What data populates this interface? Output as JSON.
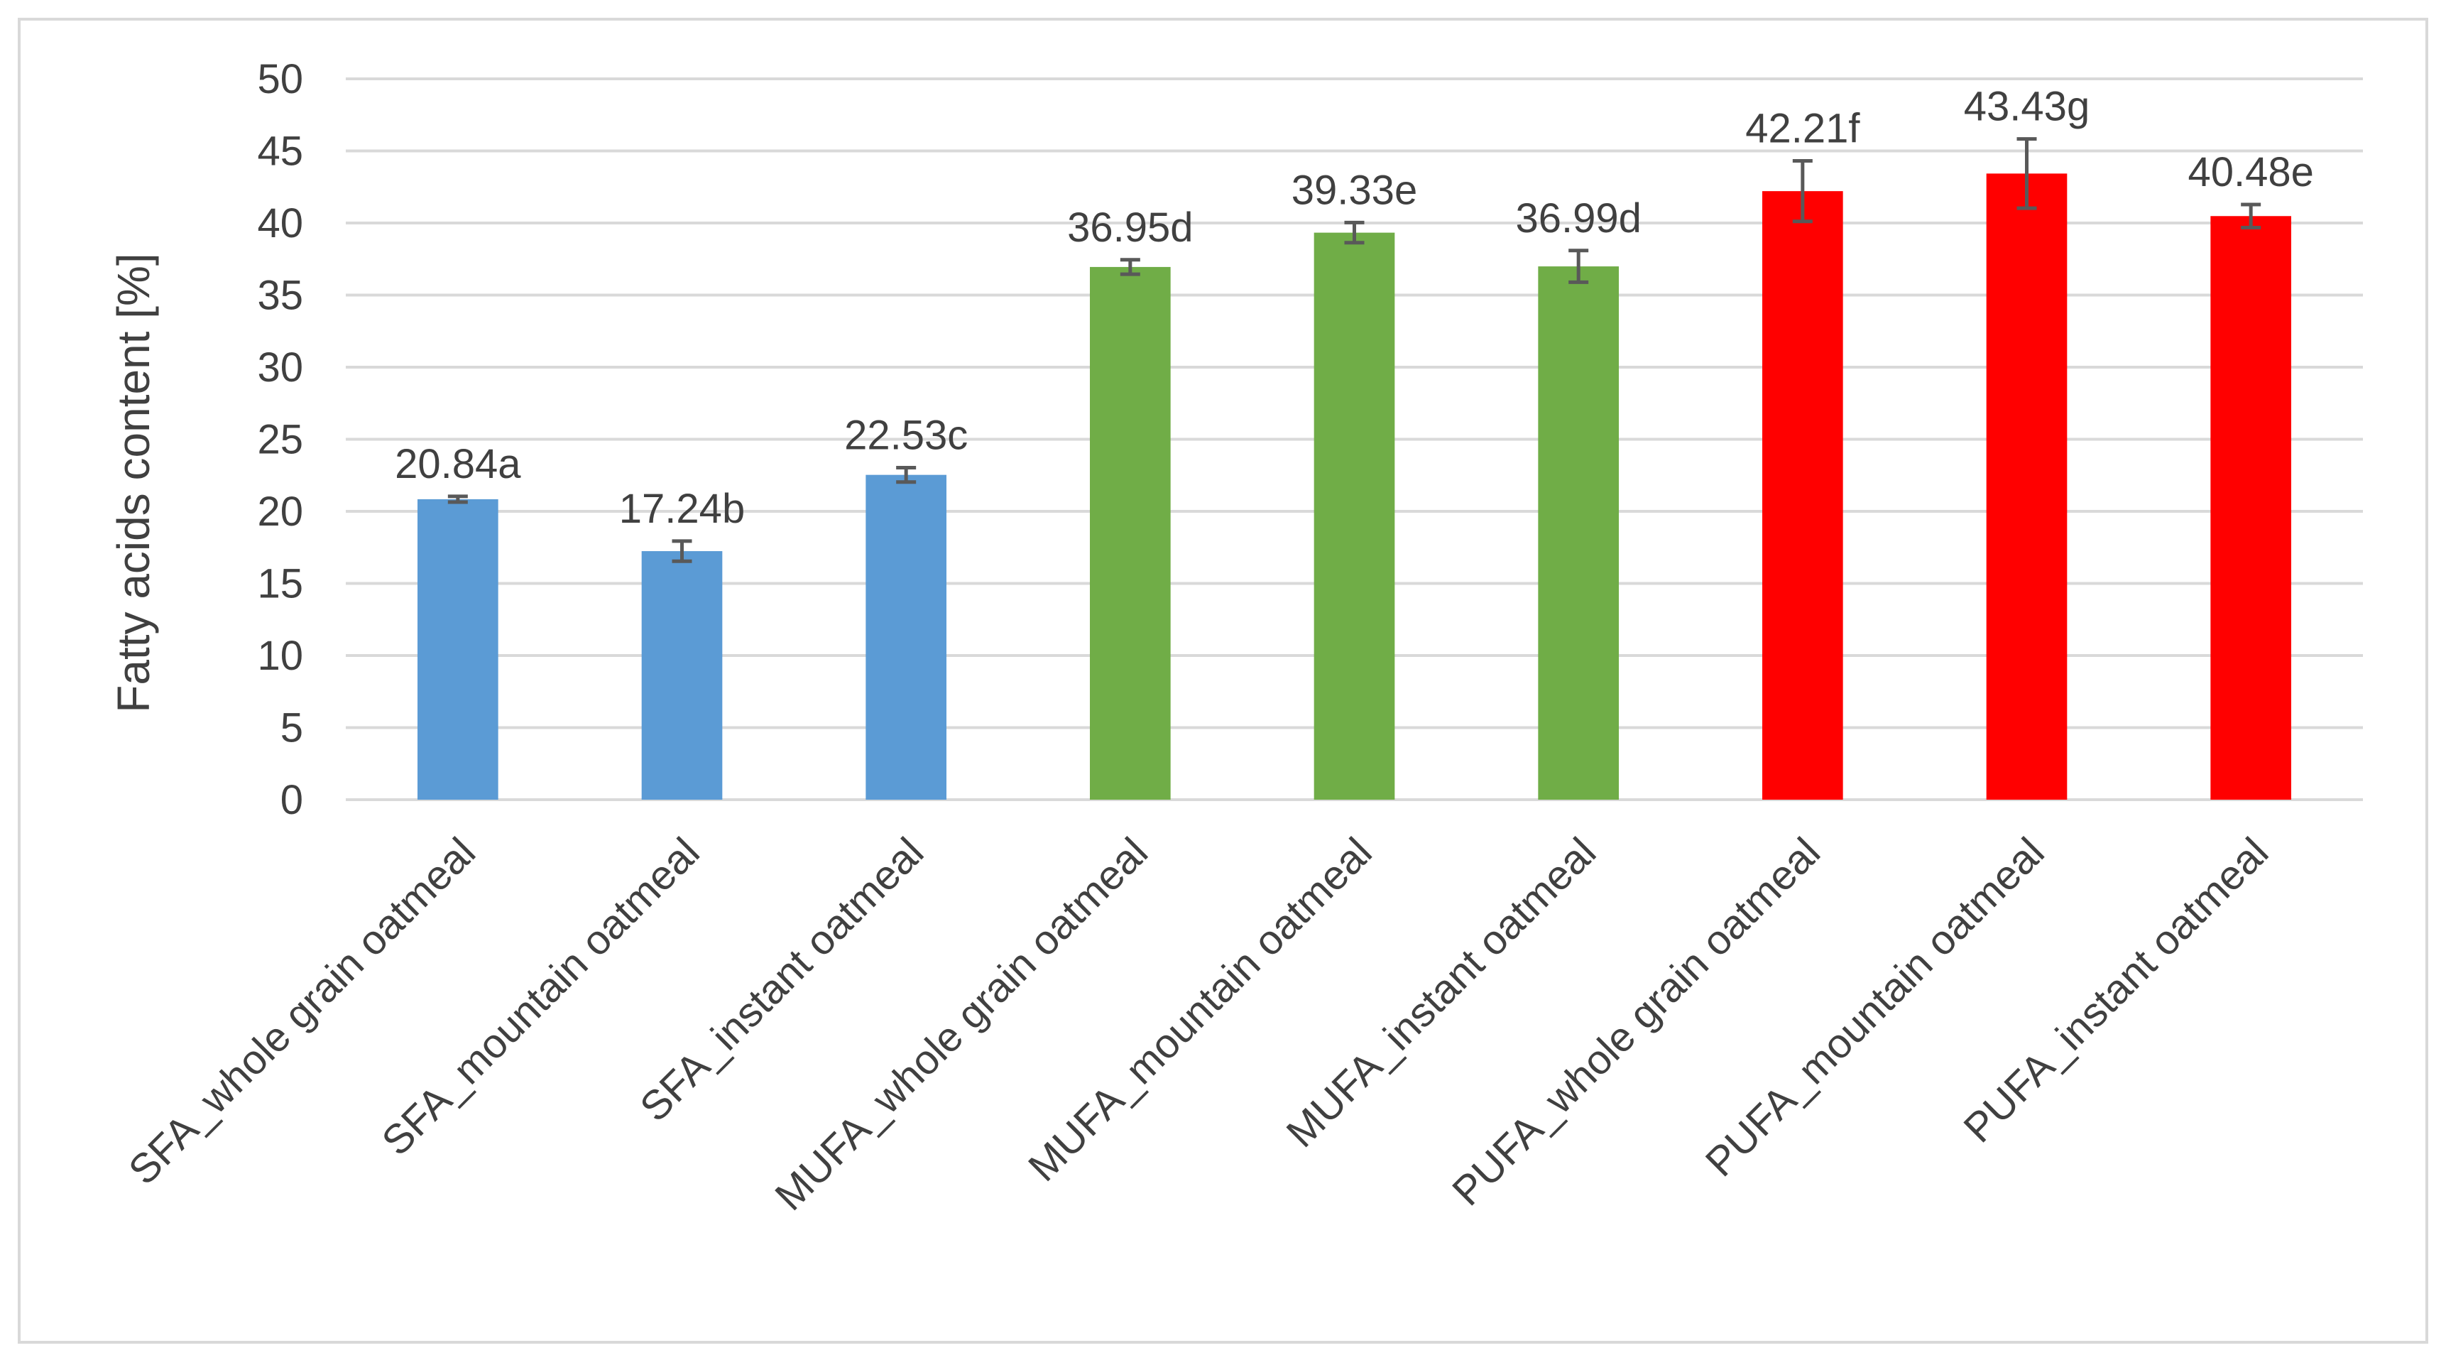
{
  "chart_data": {
    "type": "bar",
    "title": "",
    "xlabel": "",
    "ylabel": "Fatty acids content [%]",
    "ylim": [
      0,
      50
    ],
    "ytick_step": 5,
    "grid": true,
    "legend": "none",
    "categories": [
      "SFA_whole grain oatmeal",
      "SFA_mountain oatmeal",
      "SFA_instant oatmeal",
      "MUFA_whole grain oatmeal",
      "MUFA_mountain oatmeal",
      "MUFA_instant oatmeal",
      "PUFA_whole grain oatmeal",
      "PUFA_mountain oatmeal",
      "PUFA_instant oatmeal"
    ],
    "values": [
      20.84,
      17.24,
      22.53,
      36.95,
      39.33,
      36.99,
      42.21,
      43.43,
      40.48
    ],
    "errors": [
      0.2,
      0.7,
      0.5,
      0.5,
      0.7,
      1.1,
      2.1,
      2.4,
      0.8
    ],
    "data_labels": [
      "20.84a",
      "17.24b",
      "22.53c",
      "36.95d",
      "39.33e",
      "36.99d",
      "42.21f",
      "43.43g",
      "40.48e"
    ],
    "colors": [
      "#5B9BD5",
      "#5B9BD5",
      "#5B9BD5",
      "#70AD47",
      "#70AD47",
      "#70AD47",
      "#FF0000",
      "#FF0000",
      "#FF0000"
    ]
  }
}
